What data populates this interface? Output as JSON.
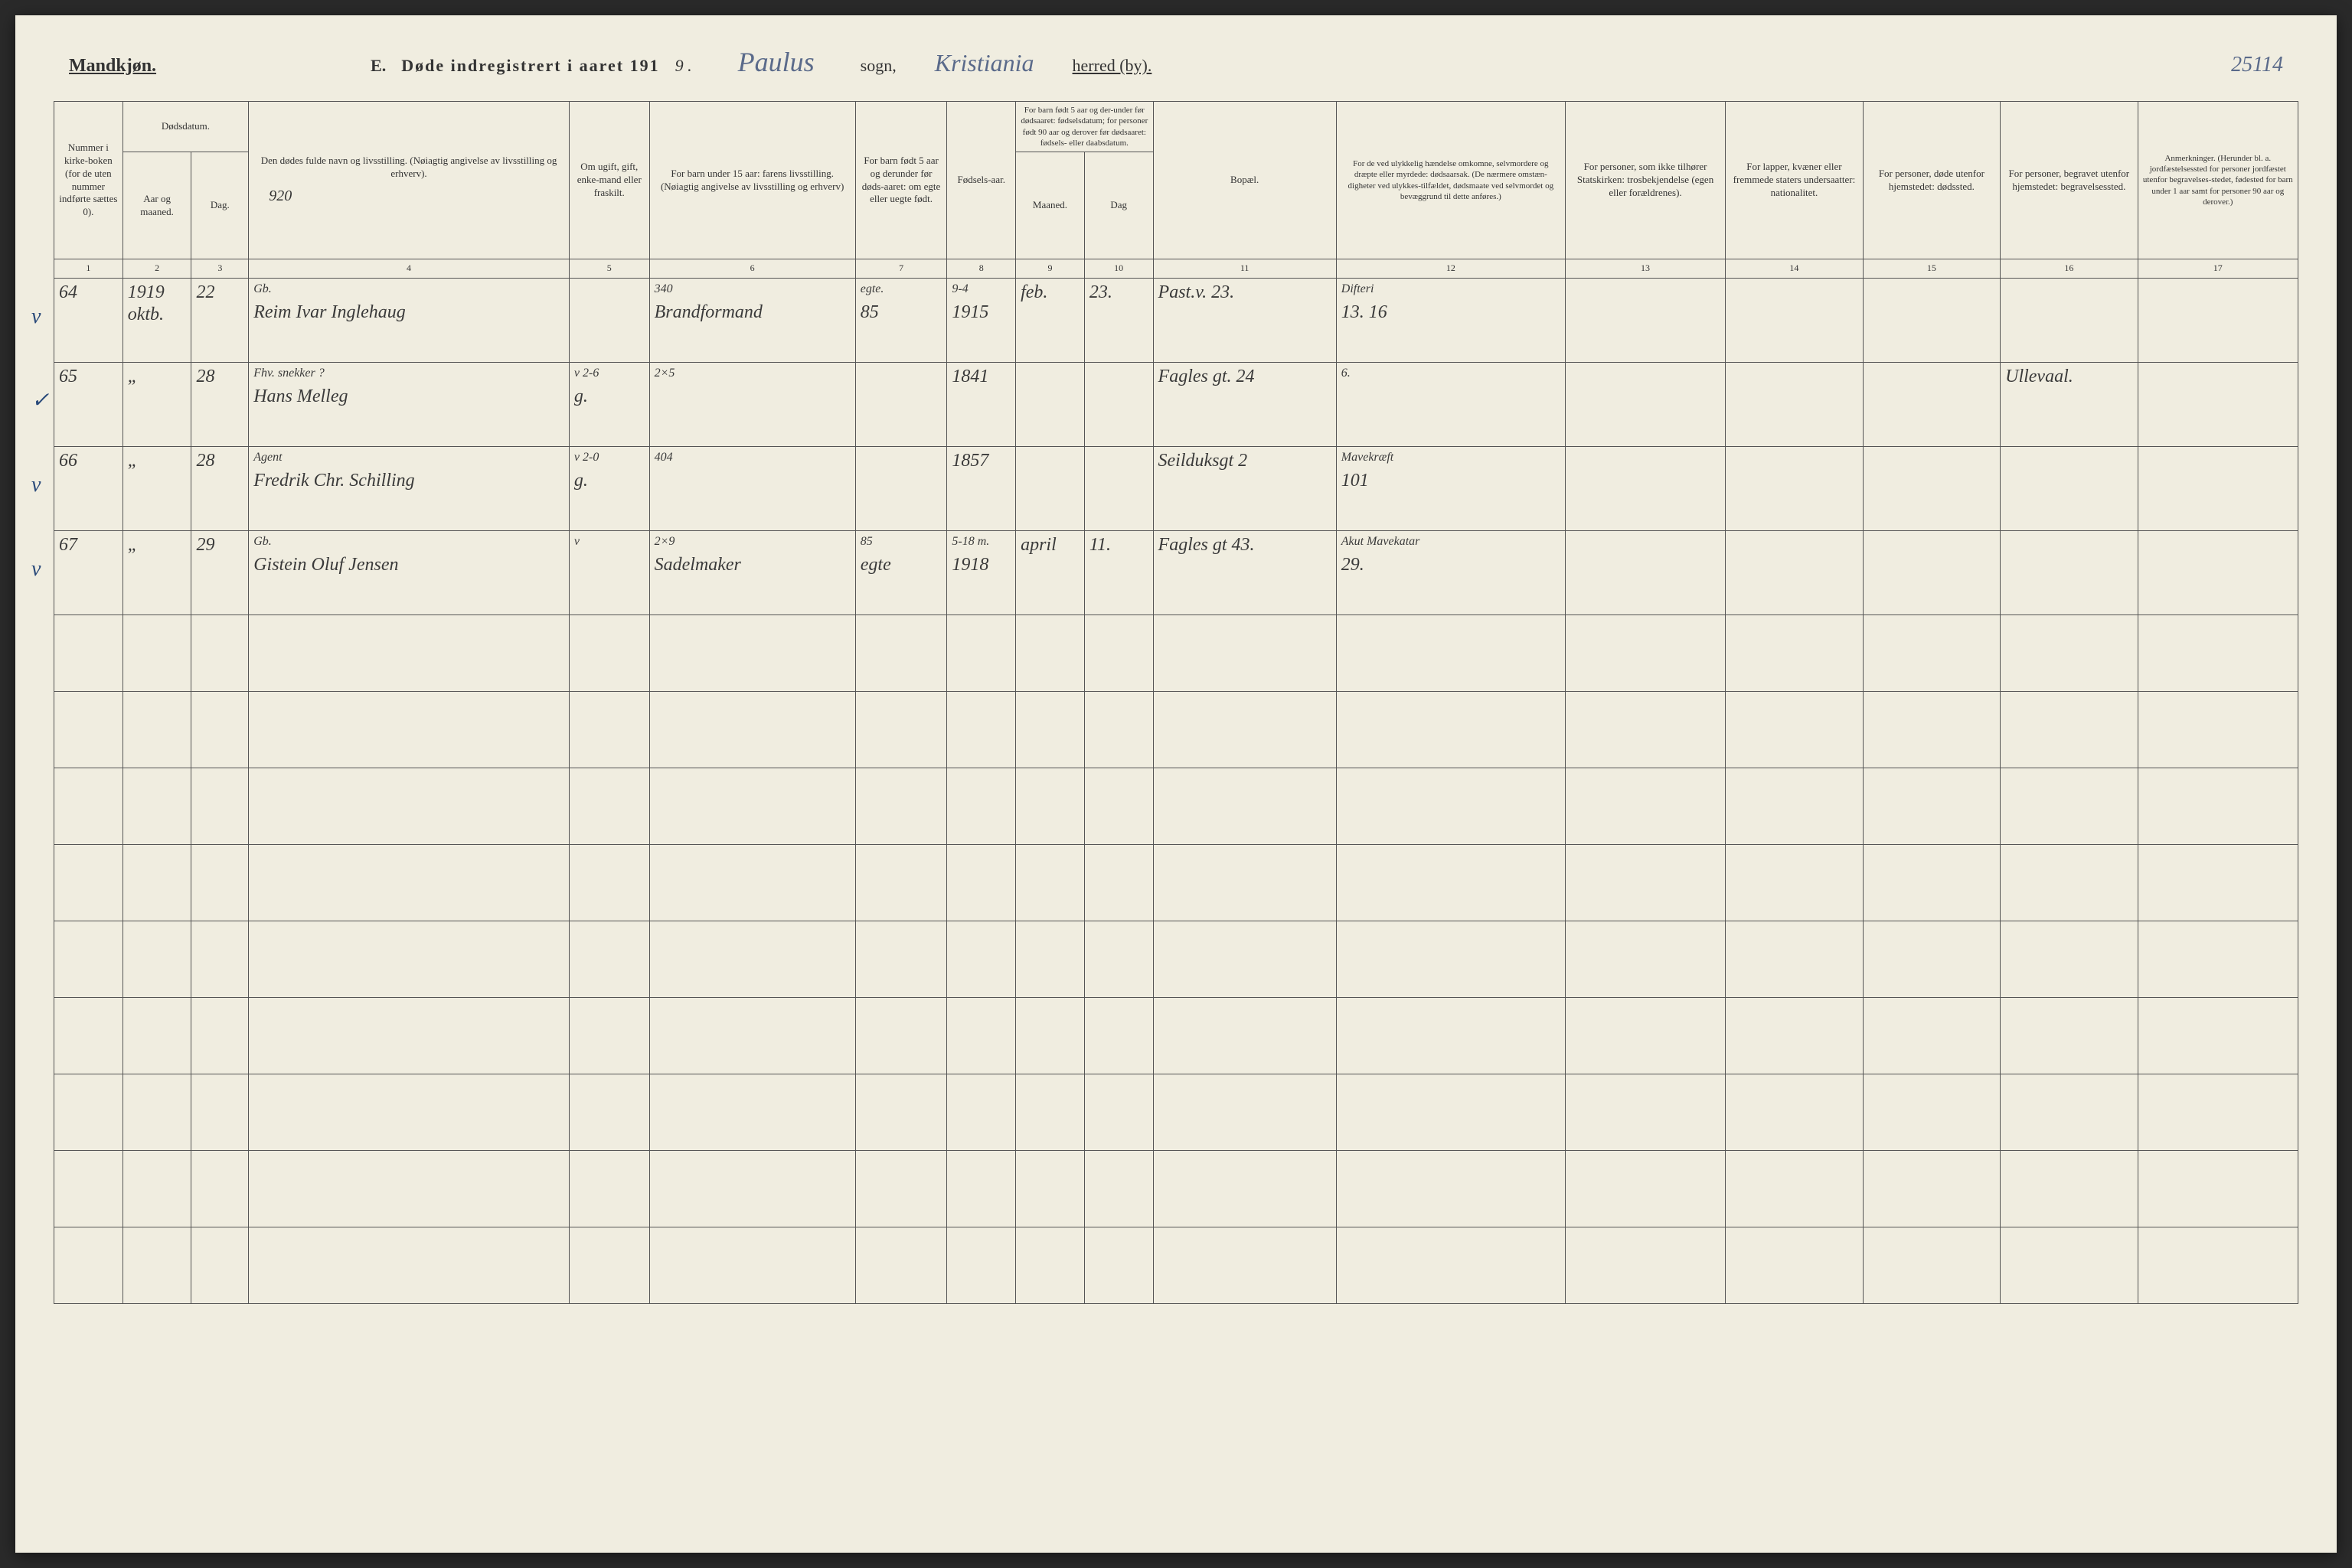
{
  "header": {
    "gender": "Mandkjøn.",
    "section": "E.",
    "title": "Døde indregistrert i aaret 191",
    "year_suffix": "9 .",
    "parish": "Paulus",
    "parish_label": "sogn,",
    "district": "Kristiania",
    "district_label": "herred (by).",
    "page_number": "25114"
  },
  "columns": [
    {
      "num": "1",
      "label": "Nummer i kirke-boken (for de uten nummer indførte sættes 0)."
    },
    {
      "num": "2",
      "label": "Aar og maaned."
    },
    {
      "num": "3",
      "label": "Dag."
    },
    {
      "num": "4",
      "label": "Den dødes fulde navn og livsstilling. (Nøiagtig angivelse av livsstilling og erhverv)."
    },
    {
      "num": "5",
      "label": "Om ugift, gift, enke-mand eller fraskilt."
    },
    {
      "num": "6",
      "label": "For barn under 15 aar: farens livsstilling. (Nøiagtig angivelse av livsstilling og erhverv)"
    },
    {
      "num": "7",
      "label": "For barn født 5 aar og derunder før døds-aaret: om egte eller uegte født."
    },
    {
      "num": "8",
      "label": "Fødsels-aar."
    },
    {
      "num": "9",
      "label": "Maaned."
    },
    {
      "num": "10",
      "label": "Dag"
    },
    {
      "num": "11",
      "label": "Bopæl."
    },
    {
      "num": "12",
      "label": "For de ved ulykkelig hændelse omkomne, selvmordere og dræpte eller myrdede: dødsaarsak. (De nærmere omstæn-digheter ved ulykkes-tilfældet, dødsmaate ved selvmordet og bevæggrund til dette anføres.)"
    },
    {
      "num": "13",
      "label": "For personer, som ikke tilhører Statskirken: trosbekjendelse (egen eller forældrenes)."
    },
    {
      "num": "14",
      "label": "For lapper, kvæner eller fremmede staters undersaatter: nationalitet."
    },
    {
      "num": "15",
      "label": "For personer, døde utenfor hjemstedet: dødssted."
    },
    {
      "num": "16",
      "label": "For personer, begravet utenfor hjemstedet: begravelsessted."
    },
    {
      "num": "17",
      "label": "Anmerkninger. (Herunder bl. a. jordfæstelsessted for personer jordfæstet utenfor begravelses-stedet, fødested for barn under 1 aar samt for personer 90 aar og derover.)"
    }
  ],
  "header_groups": {
    "dodsdatum": "Dødsdatum.",
    "barn_before": "For barn født 5 aar og der-under før dødsaaret: fødselsdatum; for personer født 90 aar og derover før dødsaaret: fødsels- eller daabsdatum."
  },
  "header_note_920": "920",
  "rows": [
    {
      "margin": "v",
      "num": "64",
      "aar": "1919 oktb.",
      "dag": "22",
      "name_top": "Gb.",
      "name": "Reim Ivar Inglehaug",
      "status": "",
      "father_top": "340",
      "father": "Brandformand",
      "egte_top": "egte.",
      "egte": "85",
      "fodsaar_top": "9-4",
      "fodsaar": "1915",
      "maaned": "feb.",
      "dag2": "23.",
      "bopael": "Past.v. 23.",
      "cause_top": "Difteri",
      "cause": "13.                16",
      "c13": "",
      "c14": "",
      "c15": "",
      "c16": "",
      "c17": ""
    },
    {
      "margin": "✓",
      "num": "65",
      "aar": "„",
      "dag": "28",
      "name_top": "Fhv. snekker ?",
      "name": "Hans Melleg",
      "status": "g.",
      "status_top": "v 2-6",
      "father_top": "2×5",
      "father": "",
      "egte": "",
      "fodsaar": "1841",
      "maaned": "",
      "dag2": "",
      "bopael": "Fagles gt. 24",
      "cause_top": "6.",
      "cause": "",
      "c13": "",
      "c14": "",
      "c15": "",
      "c16": "Ullevaal.",
      "c17": ""
    },
    {
      "margin": "v",
      "num": "66",
      "aar": "„",
      "dag": "28",
      "name_top": "Agent",
      "name": "Fredrik Chr. Schilling",
      "status": "g.",
      "status_top": "v 2-0",
      "father_top": "404",
      "father": "",
      "egte": "",
      "fodsaar": "1857",
      "maaned": "",
      "dag2": "",
      "bopael": "Seilduksgt 2",
      "cause_top": "Mavekræft",
      "cause": "101",
      "c13": "",
      "c14": "",
      "c15": "",
      "c16": "",
      "c17": ""
    },
    {
      "margin": "v",
      "num": "67",
      "aar": "„",
      "dag": "29",
      "name_top": "Gb.",
      "name": "Gistein Oluf Jensen",
      "status": "",
      "status_top": "v",
      "father_top": "2×9",
      "father": "Sadelmaker",
      "egte": "egte",
      "egte_top": "85",
      "fodsaar_top": "5-18 m.",
      "fodsaar": "1918",
      "maaned": "april",
      "dag2": "11.",
      "bopael": "Fagles gt 43.",
      "cause_top": "Akut Mavekatar",
      "cause": "29.",
      "c13": "",
      "c14": "",
      "c15": "",
      "c16": "",
      "c17": ""
    }
  ],
  "empty_rows": 9,
  "colors": {
    "page_bg": "#f0ede0",
    "ink": "#3a3a3a",
    "blue_ink": "#5a6a8a",
    "border": "#555555"
  }
}
